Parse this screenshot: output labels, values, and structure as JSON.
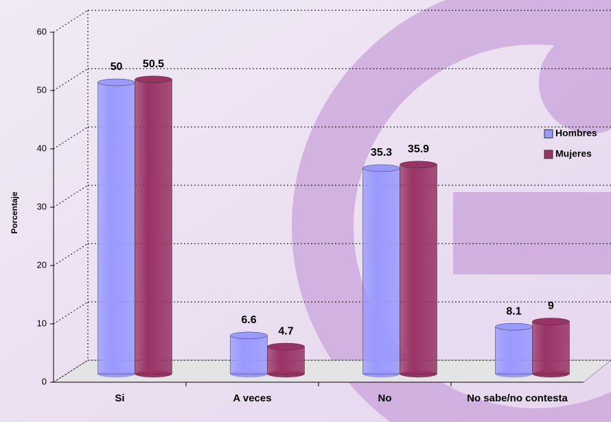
{
  "chart_data": {
    "type": "bar3d",
    "y_label": "Porcentaje",
    "categories": [
      "Si",
      "A veces",
      "No",
      "No sabe/no contesta"
    ],
    "series": [
      {
        "name": "Hombres",
        "color": "#9999ff",
        "values": [
          50,
          6.6,
          35.3,
          8.1
        ]
      },
      {
        "name": "Mujeres",
        "color": "#993366",
        "values": [
          50.5,
          4.7,
          35.9,
          9
        ]
      }
    ],
    "ylim": [
      0,
      60
    ],
    "yticks": [
      0,
      10,
      20,
      30,
      40,
      50,
      60
    ],
    "grid": true,
    "legend": "right"
  }
}
